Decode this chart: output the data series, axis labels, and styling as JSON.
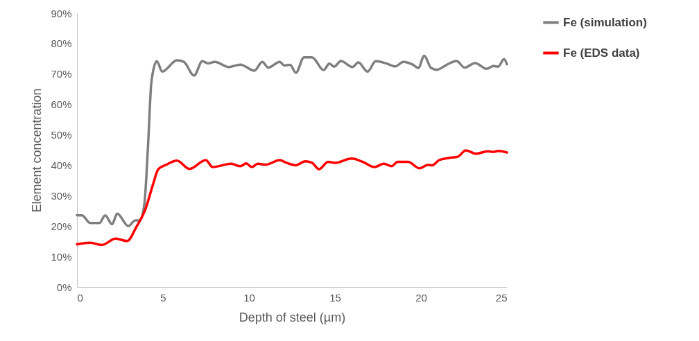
{
  "chart_data": {
    "type": "line",
    "xlabel": "Depth of steel (µm)",
    "ylabel": "Element concentration",
    "xlim": [
      0,
      25
    ],
    "xticks": [
      0,
      5,
      10,
      15,
      20,
      25
    ],
    "ylim": [
      0,
      90
    ],
    "yticks": [
      {
        "value": 0,
        "label": "0%"
      },
      {
        "value": 10,
        "label": "10%"
      },
      {
        "value": 20,
        "label": "20%"
      },
      {
        "value": 30,
        "label": "30%"
      },
      {
        "value": 40,
        "label": "40%"
      },
      {
        "value": 50,
        "label": "50%"
      },
      {
        "value": 60,
        "label": "60%"
      },
      {
        "value": 70,
        "label": "70%"
      },
      {
        "value": 80,
        "label": "80%"
      },
      {
        "value": 90,
        "label": "90%"
      }
    ],
    "grid": false,
    "legend": "right",
    "marker": "none",
    "line_style": "solid",
    "series": [
      {
        "name": "Fe (simulation)",
        "color": "#7f7f7f",
        "x": [
          0,
          0.3,
          0.77,
          1.3,
          1.64,
          2.04,
          2.34,
          2.98,
          3.39,
          3.66,
          3.92,
          4.13,
          4.33,
          4.64,
          4.96,
          5.81,
          6.21,
          6.81,
          7.29,
          7.62,
          8.02,
          8.83,
          9.5,
          10.31,
          10.78,
          11.12,
          11.79,
          12.06,
          12.39,
          12.73,
          13.2,
          13.67,
          14.34,
          14.68,
          14.95,
          15.35,
          16.02,
          16.36,
          16.9,
          17.37,
          17.97,
          18.51,
          18.98,
          19.52,
          19.85,
          20.19,
          20.59,
          20.93,
          21.46,
          22.07,
          22.54,
          23.15,
          23.82,
          24.22,
          24.49,
          24.83,
          25
        ],
        "values": [
          23.6,
          23.5,
          21.0,
          21.0,
          23.5,
          20.6,
          24.1,
          20.0,
          21.9,
          21.9,
          27.3,
          46.2,
          67.5,
          74.2,
          70.8,
          74.5,
          74.0,
          69.5,
          74.2,
          73.5,
          74.0,
          72.3,
          73.1,
          71.1,
          74.0,
          72.1,
          74.0,
          72.8,
          73.0,
          70.4,
          75.5,
          75.5,
          71.3,
          73.4,
          72.4,
          74.3,
          72.3,
          73.8,
          70.8,
          74.2,
          73.5,
          72.5,
          74.0,
          73.1,
          72.0,
          76.0,
          72.0,
          71.4,
          72.9,
          74.3,
          72.1,
          73.6,
          71.7,
          72.6,
          72.4,
          74.9,
          73.2
        ]
      },
      {
        "name": "Fe (EDS data)",
        "color": "#ff0000",
        "x": [
          0,
          0.77,
          1.44,
          2.25,
          2.92,
          3.45,
          3.99,
          4.4,
          4.73,
          5.2,
          5.81,
          6.54,
          7.49,
          7.89,
          8.97,
          9.5,
          9.84,
          10.17,
          10.51,
          10.98,
          11.79,
          12.19,
          12.73,
          13.27,
          13.67,
          14.07,
          14.61,
          15.01,
          15.96,
          16.63,
          17.3,
          17.84,
          18.3,
          18.64,
          19.25,
          19.92,
          20.39,
          20.66,
          21.06,
          21.6,
          22.14,
          22.61,
          23.21,
          23.88,
          24.22,
          24.49,
          25
        ],
        "values": [
          14.0,
          14.5,
          13.8,
          15.9,
          15.1,
          19.7,
          25.7,
          33.3,
          38.7,
          40.2,
          41.5,
          38.8,
          41.7,
          39.4,
          40.5,
          39.7,
          40.6,
          39.4,
          40.5,
          40.2,
          41.7,
          40.8,
          40.0,
          41.3,
          40.8,
          38.7,
          41.1,
          40.8,
          42.2,
          41.1,
          39.4,
          40.5,
          39.7,
          41.1,
          41.1,
          39.0,
          40.1,
          40.0,
          41.7,
          42.4,
          42.8,
          44.9,
          43.8,
          44.6,
          44.4,
          44.7,
          44.2
        ]
      }
    ]
  }
}
